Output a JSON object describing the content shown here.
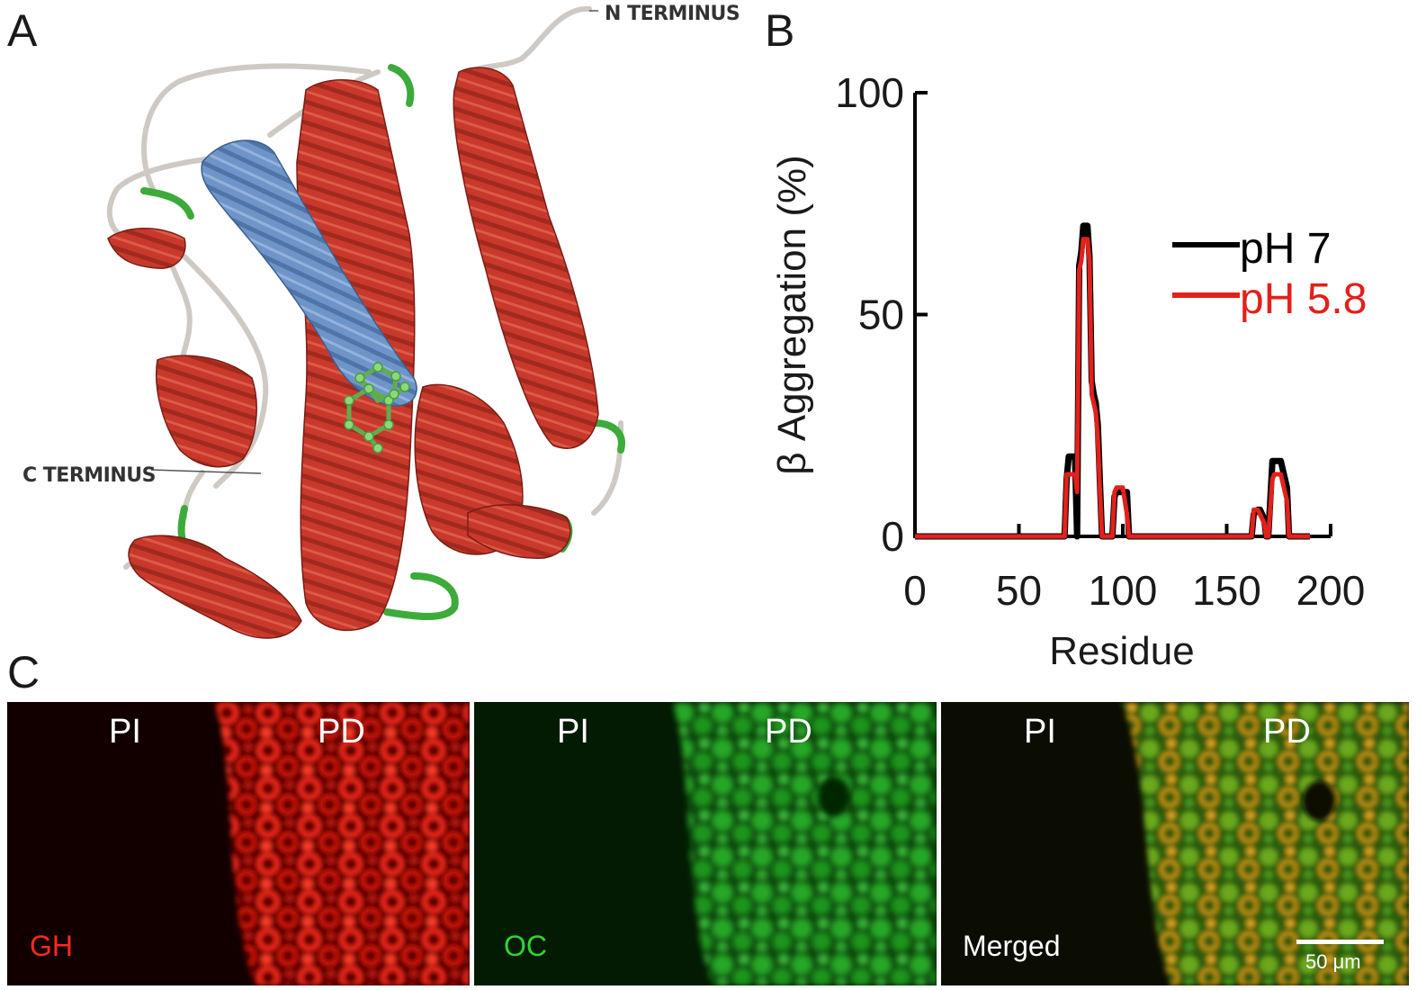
{
  "panel_labels": {
    "a": "A",
    "b": "B",
    "c": "C"
  },
  "panel_a": {
    "n_terminus": "N TERMINUS",
    "c_terminus": "C TERMINUS",
    "colors": {
      "helix": "#c8392b",
      "highlight_helix": "#6f95c8",
      "loop": "#d9d4d0",
      "turn": "#3cab3a",
      "ligand": "#6ec95e"
    }
  },
  "chart_data": {
    "type": "line",
    "title": "",
    "xlabel": "Residue",
    "ylabel": "β Aggregation (%)",
    "xlim": [
      0,
      200
    ],
    "ylim": [
      0,
      100
    ],
    "xticks": [
      "0",
      "50",
      "100",
      "150",
      "200"
    ],
    "yticks": [
      "0",
      "50",
      "100"
    ],
    "legend_position": "right",
    "series": [
      {
        "name": "pH 7",
        "color": "#000000",
        "x": [
          0,
          72,
          73,
          74,
          77,
          78,
          79,
          80,
          81,
          83,
          84,
          85,
          86,
          87,
          88,
          89,
          90,
          91,
          95,
          96,
          97,
          99,
          100,
          102,
          103,
          104,
          105,
          160,
          162,
          163,
          165,
          166,
          168,
          169,
          170,
          172,
          173,
          174,
          176,
          177,
          178,
          179,
          180,
          181,
          190
        ],
        "y": [
          0,
          0,
          13,
          18,
          18,
          0,
          61,
          64,
          70,
          70,
          63,
          35,
          32,
          30,
          25,
          12,
          0,
          0,
          0,
          9,
          10,
          10,
          10,
          10,
          0,
          0,
          0,
          0,
          0,
          5,
          6,
          6,
          4,
          0,
          0,
          17,
          17,
          17,
          17,
          15,
          13,
          11,
          0,
          0,
          0
        ]
      },
      {
        "name": "pH 5.8",
        "color": "#e3201b",
        "x": [
          0,
          72,
          73,
          74,
          77,
          78,
          79,
          80,
          81,
          83,
          84,
          85,
          86,
          87,
          88,
          89,
          90,
          91,
          95,
          96,
          97,
          99,
          100,
          102,
          103,
          104,
          105,
          160,
          162,
          163,
          165,
          166,
          168,
          169,
          170,
          172,
          173,
          174,
          176,
          177,
          178,
          179,
          180,
          181,
          190
        ],
        "y": [
          0,
          0,
          14,
          14,
          14,
          10,
          60,
          62,
          67,
          67,
          62,
          32,
          30,
          28,
          22,
          10,
          0,
          0,
          0,
          10,
          11,
          11,
          11,
          5,
          0,
          0,
          0,
          0,
          0,
          6,
          6,
          5,
          3,
          0,
          0,
          13,
          14,
          14,
          14,
          12,
          10,
          8,
          0,
          0,
          0
        ]
      }
    ]
  },
  "panel_c": {
    "images": [
      {
        "pi": "PI",
        "pd": "PD",
        "stain": "GH",
        "stain_color": "#ff2a1f"
      },
      {
        "pi": "PI",
        "pd": "PD",
        "stain": "OC",
        "stain_color": "#2fd52f"
      },
      {
        "pi": "PI",
        "pd": "PD",
        "stain": "Merged",
        "stain_color": "#ffffff"
      }
    ],
    "scale_bar": "50 μm"
  }
}
